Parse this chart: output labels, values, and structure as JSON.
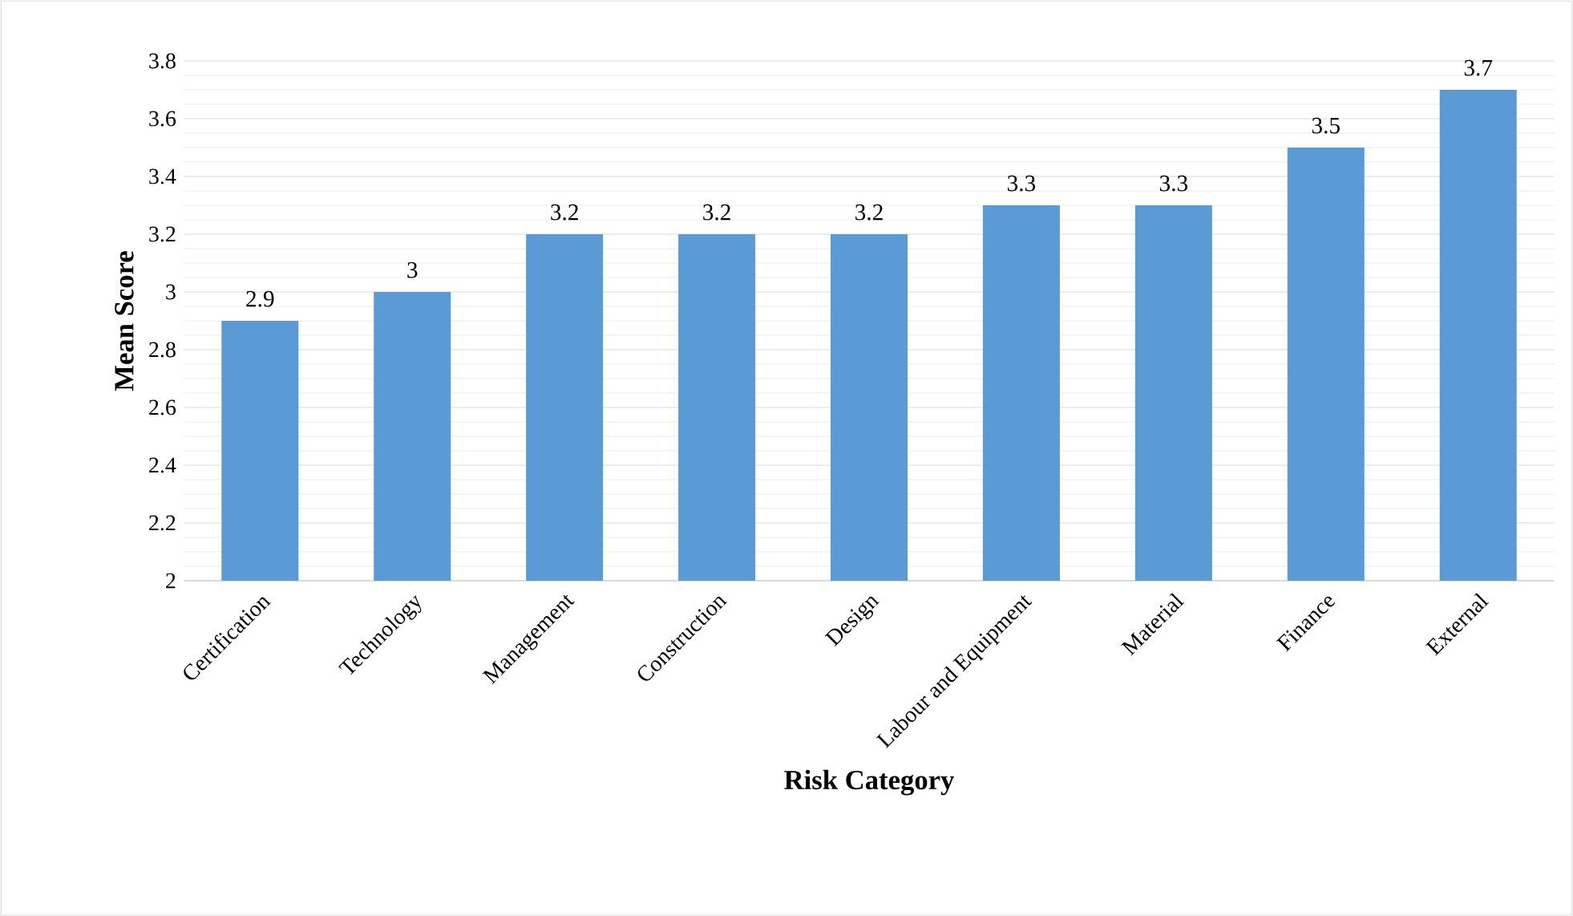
{
  "chart_data": {
    "type": "bar",
    "xlabel": "Risk Category",
    "ylabel": "Mean Score",
    "categories": [
      "Certification",
      "Technology",
      "Management",
      "Construction",
      "Design",
      "Labour and Equipment",
      "Material",
      "Finance",
      "External"
    ],
    "values": [
      2.9,
      3,
      3.2,
      3.2,
      3.2,
      3.3,
      3.3,
      3.5,
      3.7
    ],
    "color": "#5b9bd5",
    "ylim": [
      2,
      3.8
    ],
    "yticks": [
      2,
      2.2,
      2.4,
      2.6,
      2.8,
      3,
      3.2,
      3.4,
      3.6,
      3.8
    ],
    "grid": "y",
    "data_labels": true
  }
}
